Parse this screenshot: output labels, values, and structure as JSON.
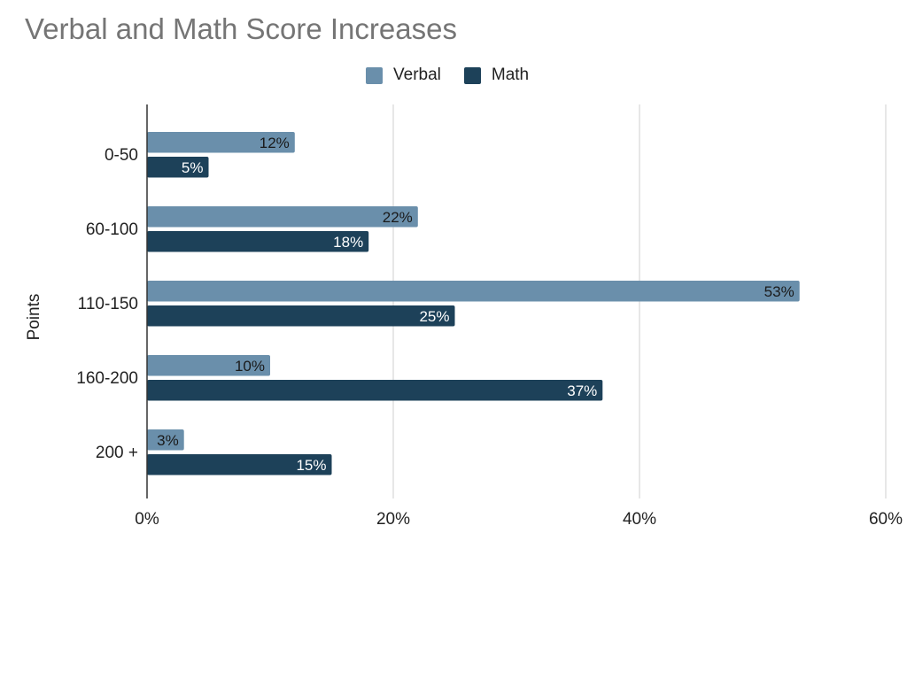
{
  "chart_data": {
    "type": "bar",
    "orientation": "horizontal",
    "title": "Verbal and Math Score Increases",
    "ylabel": "Points",
    "xlabel": "",
    "categories": [
      "0-50",
      "60-100",
      "110-150",
      "160-200",
      "200 +"
    ],
    "series": [
      {
        "name": "Verbal",
        "color": "#6a8fab",
        "label_color": "#1a1a1a",
        "values": [
          12,
          22,
          53,
          10,
          3
        ],
        "labels": [
          "12%",
          "22%",
          "53%",
          "10%",
          "3%"
        ]
      },
      {
        "name": "Math",
        "color": "#1d4159",
        "label_color": "#ffffff",
        "values": [
          5,
          18,
          25,
          37,
          15
        ],
        "labels": [
          "5%",
          "18%",
          "25%",
          "37%",
          "15%"
        ]
      }
    ],
    "xlim": [
      0,
      60
    ],
    "xticks": [
      0,
      20,
      40,
      60
    ],
    "xtick_labels": [
      "0%",
      "20%",
      "40%",
      "60%"
    ],
    "grid": true,
    "legend_position": "top-center"
  }
}
